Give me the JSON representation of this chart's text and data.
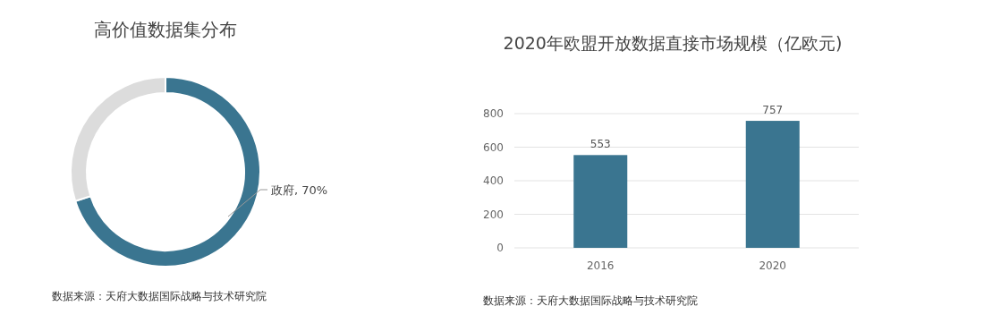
{
  "chart_data": [
    {
      "type": "donut",
      "title": "高价值数据集分布",
      "categories": [
        "政府",
        null
      ],
      "values": [
        70,
        30
      ],
      "colors": [
        "#3a7590",
        "#dcdcdc"
      ],
      "value_labels": [
        "70%",
        null
      ],
      "annotations": [
        "数据来源：天府大数据国际战略与技术研究院"
      ]
    },
    {
      "type": "bar",
      "title": "2020年欧盟开放数据直接市场规模（亿欧元)",
      "categories": [
        "2016",
        "2020"
      ],
      "values": [
        553,
        757
      ],
      "color": "#3a7590",
      "ylim": [
        0,
        800
      ],
      "yticks": [
        0,
        200,
        400,
        600,
        800
      ],
      "grid": "y",
      "data_labels": true,
      "annotations": [
        "数据来源：天府大数据国际战略与技术研究院"
      ]
    }
  ]
}
